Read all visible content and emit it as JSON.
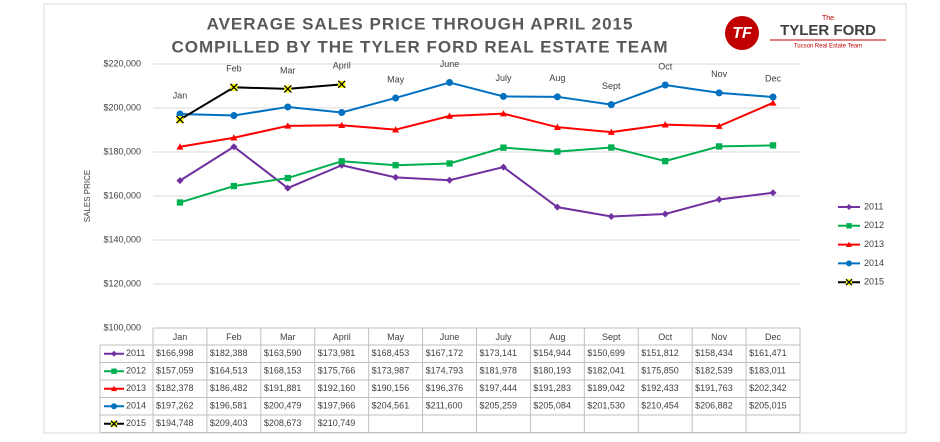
{
  "chart_data": {
    "type": "line",
    "title": [
      "AVERAGE SALES PRICE THROUGH APRIL 2015",
      "COMPILLED BY THE TYLER FORD REAL ESTATE TEAM"
    ],
    "y_label": "SALES PRICE",
    "logo": {
      "mark": "TF",
      "the": "The",
      "name": "TYLER FORD",
      "tagline": "Tucson Real Estate Team"
    },
    "categories": [
      "Jan",
      "Feb",
      "Mar",
      "April",
      "May",
      "June",
      "July",
      "Aug",
      "Sept",
      "Oct",
      "Nov",
      "Dec"
    ],
    "ylim": [
      100000,
      220000
    ],
    "yticks": [
      {
        "value": 100000,
        "label": "$100,000"
      },
      {
        "value": 120000,
        "label": "$120,000"
      },
      {
        "value": 140000,
        "label": "$140,000"
      },
      {
        "value": 160000,
        "label": "$160,000"
      },
      {
        "value": 180000,
        "label": "$180,000"
      },
      {
        "value": 200000,
        "label": "$200,000"
      },
      {
        "value": 220000,
        "label": "$220,000"
      }
    ],
    "grid": true,
    "legend": "right",
    "series": [
      {
        "name": "2011",
        "color": "#7030a0",
        "marker": "diamond",
        "values": [
          166998,
          182388,
          163590,
          173981,
          168453,
          167172,
          173141,
          154944,
          150699,
          151812,
          158434,
          161471
        ],
        "value_labels": [
          "$166,998",
          "$182,388",
          "$163,590",
          "$173,981",
          "$168,453",
          "$167,172",
          "$173,141",
          "$154,944",
          "$150,699",
          "$151,812",
          "$158,434",
          "$161,471"
        ]
      },
      {
        "name": "2012",
        "color": "#00b050",
        "marker": "square",
        "values": [
          157059,
          164513,
          168153,
          175766,
          173987,
          174793,
          181978,
          180193,
          182041,
          175850,
          182539,
          183011
        ],
        "value_labels": [
          "$157,059",
          "$164,513",
          "$168,153",
          "$175,766",
          "$173,987",
          "$174,793",
          "$181,978",
          "$180,193",
          "$182,041",
          "$175,850",
          "$182,539",
          "$183,011"
        ]
      },
      {
        "name": "2013",
        "color": "#ff0000",
        "marker": "triangle",
        "values": [
          182378,
          186482,
          191881,
          192160,
          190156,
          196376,
          197444,
          191283,
          189042,
          192433,
          191763,
          202342
        ],
        "value_labels": [
          "$182,378",
          "$186,482",
          "$191,881",
          "$192,160",
          "$190,156",
          "$196,376",
          "$197,444",
          "$191,283",
          "$189,042",
          "$192,433",
          "$191,763",
          "$202,342"
        ]
      },
      {
        "name": "2014",
        "color": "#0070c0",
        "marker": "circle",
        "values": [
          197262,
          196581,
          200479,
          197966,
          204561,
          211600,
          205259,
          205084,
          201530,
          210454,
          206882,
          205015
        ],
        "value_labels": [
          "$197,262",
          "$196,581",
          "$200,479",
          "$197,966",
          "$204,561",
          "$211,600",
          "$205,259",
          "$205,084",
          "$201,530",
          "$210,454",
          "$206,882",
          "$205,015"
        ]
      },
      {
        "name": "2015",
        "color": "#000000",
        "marker": "x",
        "values": [
          194748,
          209403,
          208673,
          210749,
          null,
          null,
          null,
          null,
          null,
          null,
          null,
          null
        ],
        "value_labels": [
          "$194,748",
          "$209,403",
          "$208,673",
          "$210,749",
          null,
          null,
          null,
          null,
          null,
          null,
          null,
          null
        ]
      }
    ]
  }
}
